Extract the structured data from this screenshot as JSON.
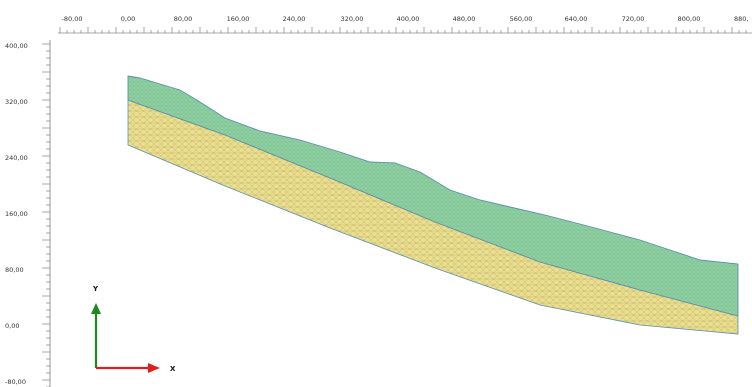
{
  "ruler": {
    "top_labels": [
      "-80,00",
      "0,00",
      "80,00",
      "160,00",
      "240,00",
      "320,00",
      "400,00",
      "480,00",
      "560,00",
      "640,00",
      "720,00",
      "800,00",
      "880,"
    ],
    "left_labels": [
      "400,00",
      "320,00",
      "240,00",
      "160,00",
      "80,00",
      "0,00",
      "-80,00"
    ]
  },
  "axes_triad": {
    "x_label": "X",
    "y_label": "Y",
    "x_color": "#e02020",
    "y_color": "#1a8a1a"
  },
  "model": {
    "upper_layer_color": "#8fd3a3",
    "lower_layer_color": "#ecdf8e",
    "outline_color": "#5b8fb0",
    "mesh_color": "#4c7a5a"
  }
}
